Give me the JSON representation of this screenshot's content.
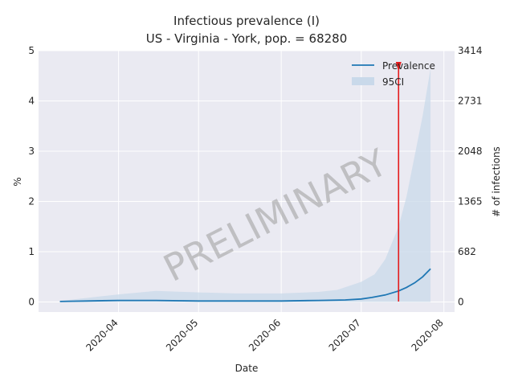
{
  "chart_data": {
    "type": "line",
    "title_line1": "Infectious prevalence (I)",
    "title_line2": "US - Virginia - York, pop. = 68280",
    "xlabel": "Date",
    "ylabel": "%",
    "ylabel_right": "# of infections",
    "xlim": [
      "2020-03-02",
      "2020-08-05"
    ],
    "ylim": [
      -0.2,
      5.0
    ],
    "x_ticks": [
      "2020-04",
      "2020-05",
      "2020-06",
      "2020-07",
      "2020-08"
    ],
    "y_ticks": [
      0,
      1,
      2,
      3,
      4,
      5
    ],
    "y_ticks_right": [
      "0",
      "682",
      "1365",
      "2048",
      "2731",
      "3414"
    ],
    "grid": true,
    "legend_position": "top-right",
    "watermark": "PRELIMINARY",
    "marker_date": "2020-07-15",
    "colors": {
      "line": "#1f77b4",
      "band": "#c9d9ea",
      "marker": "#e41a1c",
      "background": "#eaeaf2",
      "grid": "#ffffff"
    },
    "series": [
      {
        "name": "Prevalence",
        "x": [
          "2020-03-10",
          "2020-03-20",
          "2020-04-01",
          "2020-04-15",
          "2020-05-01",
          "2020-05-15",
          "2020-06-01",
          "2020-06-15",
          "2020-06-25",
          "2020-07-01",
          "2020-07-05",
          "2020-07-10",
          "2020-07-15",
          "2020-07-18",
          "2020-07-21",
          "2020-07-24",
          "2020-07-27"
        ],
        "y": [
          0.01,
          0.02,
          0.03,
          0.03,
          0.02,
          0.02,
          0.02,
          0.03,
          0.04,
          0.06,
          0.09,
          0.14,
          0.22,
          0.29,
          0.38,
          0.5,
          0.66
        ]
      },
      {
        "name": "95CI",
        "x": [
          "2020-03-10",
          "2020-03-20",
          "2020-04-01",
          "2020-04-15",
          "2020-05-01",
          "2020-05-15",
          "2020-06-01",
          "2020-06-15",
          "2020-06-22",
          "2020-07-01",
          "2020-07-06",
          "2020-07-10",
          "2020-07-15",
          "2020-07-18",
          "2020-07-21",
          "2020-07-24",
          "2020-07-27"
        ],
        "lower": [
          0,
          0,
          0,
          0,
          0,
          0,
          0,
          0,
          0,
          0,
          0,
          0,
          0,
          0,
          0,
          0,
          0
        ],
        "upper": [
          0.02,
          0.08,
          0.15,
          0.22,
          0.19,
          0.17,
          0.17,
          0.2,
          0.24,
          0.4,
          0.55,
          0.85,
          1.5,
          2.1,
          2.9,
          3.7,
          4.65
        ]
      }
    ]
  }
}
